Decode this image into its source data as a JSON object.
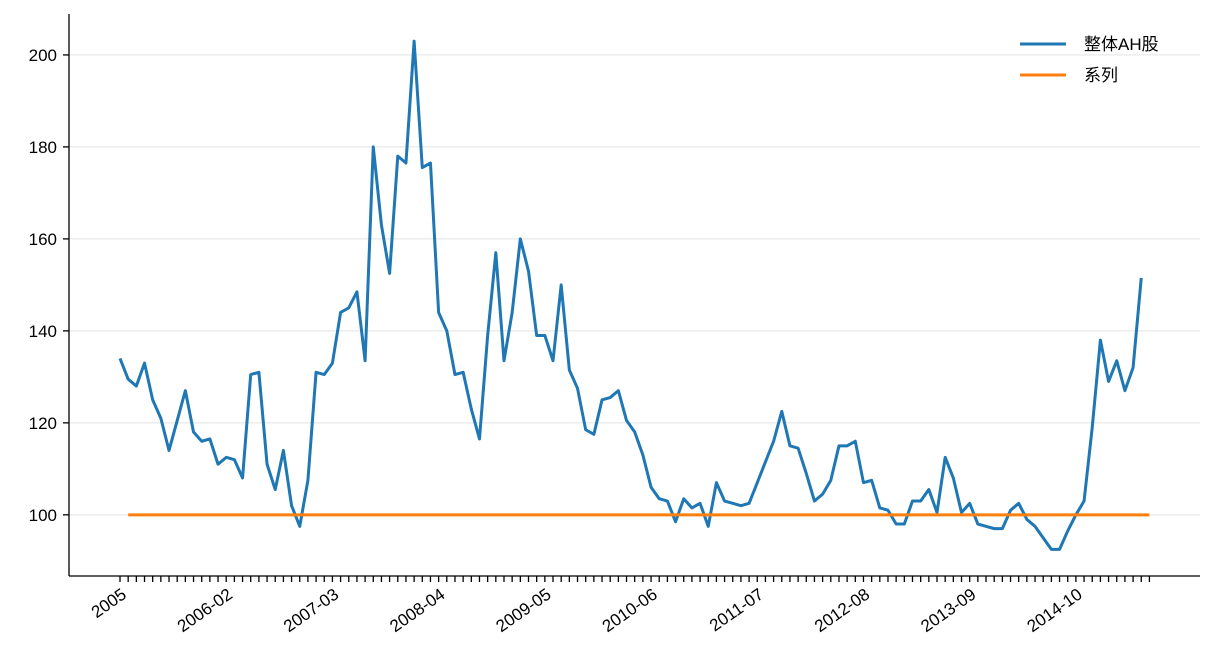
{
  "chart_data": {
    "type": "line",
    "categories": [
      "2005",
      null,
      null,
      null,
      null,
      null,
      null,
      null,
      null,
      null,
      null,
      null,
      null,
      "2006-02",
      null,
      null,
      null,
      null,
      null,
      null,
      null,
      null,
      null,
      null,
      null,
      null,
      "2007-03",
      null,
      null,
      null,
      null,
      null,
      null,
      null,
      null,
      null,
      null,
      null,
      null,
      "2008-04",
      null,
      null,
      null,
      null,
      null,
      null,
      null,
      null,
      null,
      null,
      null,
      null,
      "2009-05",
      null,
      null,
      null,
      null,
      null,
      null,
      null,
      null,
      null,
      null,
      null,
      null,
      "2010-06",
      null,
      null,
      null,
      null,
      null,
      null,
      null,
      null,
      null,
      null,
      null,
      null,
      "2011-07",
      null,
      null,
      null,
      null,
      null,
      null,
      null,
      null,
      null,
      null,
      null,
      null,
      "2012-08",
      null,
      null,
      null,
      null,
      null,
      null,
      null,
      null,
      null,
      null,
      null,
      null,
      "2013-09",
      null,
      null,
      null,
      null,
      null,
      null,
      null,
      null,
      null,
      null,
      null,
      null,
      "2014-10",
      null,
      null,
      null,
      null,
      null,
      null,
      null,
      null,
      null
    ],
    "series": [
      {
        "name": "整体AH股",
        "color": "#1f77b4",
        "values": [
          134,
          129.5,
          128,
          133,
          125,
          121,
          114,
          120.5,
          127,
          118,
          116,
          116.5,
          111,
          112.5,
          112,
          108,
          130.5,
          131,
          111,
          105.5,
          114,
          102,
          97.5,
          107.5,
          131,
          130.5,
          133,
          144,
          145,
          148.5,
          133.5,
          180,
          163,
          152.5,
          178,
          176.5,
          203,
          175.5,
          176.5,
          144,
          140,
          130.5,
          131,
          123,
          116.5,
          139,
          157,
          133.5,
          144,
          160,
          153,
          139,
          139,
          133.5,
          150,
          131.5,
          127.5,
          118.5,
          117.5,
          125,
          125.5,
          127,
          120.5,
          118,
          113,
          106,
          103.5,
          103,
          98.5,
          103.5,
          101.5,
          102.5,
          97.5,
          107,
          103,
          102.5,
          102,
          102.5,
          107,
          111.5,
          116,
          122.5,
          115,
          114.5,
          109,
          103,
          104.5,
          107.5,
          115,
          115,
          116,
          107,
          107.5,
          101.5,
          101,
          98,
          98,
          103,
          103,
          105.5,
          100.5,
          112.5,
          108,
          100.5,
          102.5,
          98,
          97.5,
          97,
          97,
          101,
          102.5,
          99,
          97.5,
          95,
          92.5,
          92.5,
          96.5,
          100,
          103,
          119,
          138,
          129,
          133.5,
          127,
          132,
          151.5,
          null
        ]
      },
      {
        "name": "系列",
        "color": "#ff7f0e",
        "values": [
          null,
          100,
          100,
          100,
          100,
          100,
          100,
          100,
          100,
          100,
          100,
          100,
          100,
          100,
          100,
          100,
          100,
          100,
          100,
          100,
          100,
          100,
          100,
          100,
          100,
          100,
          100,
          100,
          100,
          100,
          100,
          100,
          100,
          100,
          100,
          100,
          100,
          100,
          100,
          100,
          100,
          100,
          100,
          100,
          100,
          100,
          100,
          100,
          100,
          100,
          100,
          100,
          100,
          100,
          100,
          100,
          100,
          100,
          100,
          100,
          100,
          100,
          100,
          100,
          100,
          100,
          100,
          100,
          100,
          100,
          100,
          100,
          100,
          100,
          100,
          100,
          100,
          100,
          100,
          100,
          100,
          100,
          100,
          100,
          100,
          100,
          100,
          100,
          100,
          100,
          100,
          100,
          100,
          100,
          100,
          100,
          100,
          100,
          100,
          100,
          100,
          100,
          100,
          100,
          100,
          100,
          100,
          100,
          100,
          100,
          100,
          100,
          100,
          100,
          100,
          100,
          100,
          100,
          100,
          100,
          100,
          100,
          100,
          100,
          100,
          100,
          100
        ]
      }
    ],
    "ylim": [
      86.7,
      208.9
    ],
    "yticks": [
      100,
      120,
      140,
      160,
      180,
      200
    ],
    "grid": true,
    "legend": "upper right"
  }
}
